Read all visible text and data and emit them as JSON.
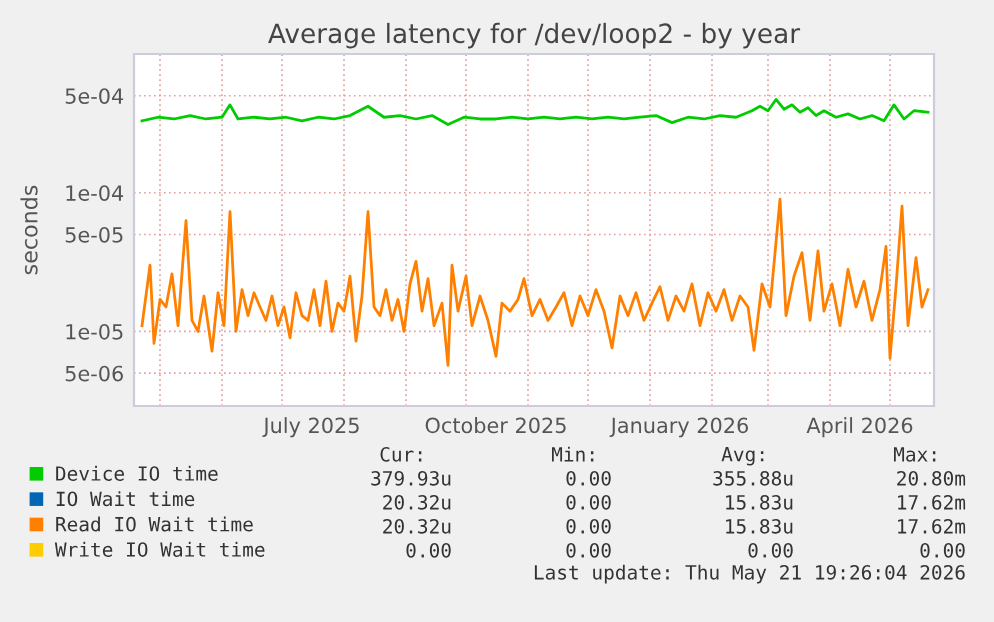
{
  "chart_data": {
    "type": "line",
    "title": "Average latency for /dev/loop2 - by year",
    "ylabel": "seconds",
    "log": "y",
    "grid": true,
    "legend": "bottom",
    "marker": "none",
    "line_style": "solid",
    "xlim": [
      "2025-04-18",
      "2026-05-23"
    ],
    "ylim": [
      2.9e-06,
      0.001
    ],
    "yticks": [
      {
        "value": 5e-06,
        "label": "5e-06"
      },
      {
        "value": 1e-05,
        "label": "1e-05"
      },
      {
        "value": 5e-05,
        "label": "5e-05"
      },
      {
        "value": 0.0001,
        "label": "1e-04"
      },
      {
        "value": 0.0005,
        "label": "5e-04"
      }
    ],
    "xticks": [
      {
        "value": "2025-05-01",
        "label": null
      },
      {
        "value": "2025-06-01",
        "label": null
      },
      {
        "value": "2025-07-01",
        "label": null
      },
      {
        "value": "2025-07-16",
        "label": "July 2025"
      },
      {
        "value": "2025-08-01",
        "label": null
      },
      {
        "value": "2025-09-01",
        "label": null
      },
      {
        "value": "2025-10-01",
        "label": null
      },
      {
        "value": "2025-10-16",
        "label": "October 2025"
      },
      {
        "value": "2025-11-01",
        "label": null
      },
      {
        "value": "2025-12-01",
        "label": null
      },
      {
        "value": "2026-01-01",
        "label": null
      },
      {
        "value": "2026-01-16",
        "label": "January 2026"
      },
      {
        "value": "2026-02-01",
        "label": null
      },
      {
        "value": "2026-03-01",
        "label": null
      },
      {
        "value": "2026-04-01",
        "label": null
      },
      {
        "value": "2026-04-16",
        "label": "April 2026"
      },
      {
        "value": "2026-05-01",
        "label": null
      }
    ],
    "series": [
      {
        "name": "Device IO time",
        "color": "#00cc00",
        "x": [
          "2025-04-22",
          "2025-04-30",
          "2025-05-08",
          "2025-05-16",
          "2025-05-24",
          "2025-06-01",
          "2025-06-05",
          "2025-06-09",
          "2025-06-17",
          "2025-06-25",
          "2025-07-03",
          "2025-07-11",
          "2025-07-19",
          "2025-07-27",
          "2025-08-04",
          "2025-08-13",
          "2025-08-21",
          "2025-08-29",
          "2025-09-06",
          "2025-09-14",
          "2025-09-22",
          "2025-09-30",
          "2025-10-08",
          "2025-10-16",
          "2025-10-24",
          "2025-11-01",
          "2025-11-09",
          "2025-11-17",
          "2025-11-25",
          "2025-12-03",
          "2025-12-11",
          "2025-12-19",
          "2025-12-27",
          "2026-01-04",
          "2026-01-12",
          "2026-01-20",
          "2026-01-28",
          "2026-02-05",
          "2026-02-13",
          "2026-02-21",
          "2026-02-25",
          "2026-03-01",
          "2026-03-05",
          "2026-03-09",
          "2026-03-13",
          "2026-03-17",
          "2026-03-21",
          "2026-03-25",
          "2026-03-29",
          "2026-04-04",
          "2026-04-10",
          "2026-04-16",
          "2026-04-22",
          "2026-04-28",
          "2026-05-03",
          "2026-05-08",
          "2026-05-13",
          "2026-05-20"
        ],
        "values": [
          0.00033,
          0.00035,
          0.00034,
          0.00036,
          0.00034,
          0.00035,
          0.00043,
          0.00034,
          0.00035,
          0.00034,
          0.00035,
          0.00033,
          0.00035,
          0.00034,
          0.00036,
          0.00042,
          0.00035,
          0.00036,
          0.00034,
          0.00036,
          0.00031,
          0.00035,
          0.00034,
          0.00034,
          0.00035,
          0.00034,
          0.00035,
          0.00034,
          0.00035,
          0.00034,
          0.00035,
          0.00034,
          0.00035,
          0.00036,
          0.00032,
          0.00035,
          0.00034,
          0.00036,
          0.00035,
          0.00039,
          0.00042,
          0.00039,
          0.00047,
          0.0004,
          0.00043,
          0.00038,
          0.00041,
          0.00036,
          0.00039,
          0.00035,
          0.00037,
          0.00034,
          0.00036,
          0.00033,
          0.00043,
          0.00034,
          0.00039,
          0.00038
        ]
      },
      {
        "name": "IO Wait time",
        "color": "#0066b3"
      },
      {
        "name": "Read IO Wait time",
        "color": "#ff8000",
        "x": [
          "2025-04-22",
          "2025-04-26",
          "2025-04-28",
          "2025-05-01",
          "2025-05-04",
          "2025-05-07",
          "2025-05-10",
          "2025-05-14",
          "2025-05-17",
          "2025-05-20",
          "2025-05-23",
          "2025-05-27",
          "2025-05-30",
          "2025-06-02",
          "2025-06-05",
          "2025-06-08",
          "2025-06-11",
          "2025-06-14",
          "2025-06-17",
          "2025-06-20",
          "2025-06-23",
          "2025-06-26",
          "2025-06-29",
          "2025-07-02",
          "2025-07-05",
          "2025-07-08",
          "2025-07-11",
          "2025-07-14",
          "2025-07-17",
          "2025-07-20",
          "2025-07-23",
          "2025-07-26",
          "2025-07-29",
          "2025-08-01",
          "2025-08-04",
          "2025-08-07",
          "2025-08-10",
          "2025-08-13",
          "2025-08-16",
          "2025-08-19",
          "2025-08-22",
          "2025-08-25",
          "2025-08-28",
          "2025-08-31",
          "2025-09-03",
          "2025-09-06",
          "2025-09-09",
          "2025-09-12",
          "2025-09-15",
          "2025-09-19",
          "2025-09-22",
          "2025-09-24",
          "2025-09-27",
          "2025-10-01",
          "2025-10-04",
          "2025-10-08",
          "2025-10-12",
          "2025-10-16",
          "2025-10-19",
          "2025-10-23",
          "2025-10-27",
          "2025-10-30",
          "2025-11-03",
          "2025-11-07",
          "2025-11-11",
          "2025-11-15",
          "2025-11-19",
          "2025-11-23",
          "2025-11-27",
          "2025-12-01",
          "2025-12-05",
          "2025-12-09",
          "2025-12-13",
          "2025-12-17",
          "2025-12-21",
          "2025-12-25",
          "2025-12-29",
          "2026-01-02",
          "2026-01-06",
          "2026-01-10",
          "2026-01-14",
          "2026-01-18",
          "2026-01-22",
          "2026-01-26",
          "2026-01-30",
          "2026-02-03",
          "2026-02-07",
          "2026-02-11",
          "2026-02-15",
          "2026-02-19",
          "2026-02-22",
          "2026-02-26",
          "2026-03-02",
          "2026-03-07",
          "2026-03-10",
          "2026-03-14",
          "2026-03-18",
          "2026-03-22",
          "2026-03-26",
          "2026-03-29",
          "2026-04-02",
          "2026-04-06",
          "2026-04-10",
          "2026-04-14",
          "2026-04-18",
          "2026-04-22",
          "2026-04-26",
          "2026-04-29",
          "2026-05-01",
          "2026-05-04",
          "2026-05-07",
          "2026-05-10",
          "2026-05-14",
          "2026-05-17",
          "2026-05-20"
        ],
        "values": [
          1.1e-05,
          3e-05,
          8.2e-06,
          1.7e-05,
          1.5e-05,
          2.6e-05,
          1.1e-05,
          6.3e-05,
          1.2e-05,
          1e-05,
          1.8e-05,
          7.2e-06,
          1.9e-05,
          1.1e-05,
          7.3e-05,
          1e-05,
          2e-05,
          1.3e-05,
          1.9e-05,
          1.5e-05,
          1.2e-05,
          1.8e-05,
          1.1e-05,
          1.5e-05,
          9e-06,
          1.9e-05,
          1.3e-05,
          1.2e-05,
          2e-05,
          1.1e-05,
          2.3e-05,
          1e-05,
          1.6e-05,
          1.4e-05,
          2.5e-05,
          8.5e-06,
          1.8e-05,
          7.3e-05,
          1.5e-05,
          1.3e-05,
          2e-05,
          1.2e-05,
          1.7e-05,
          1e-05,
          2.2e-05,
          3.2e-05,
          1.4e-05,
          2.4e-05,
          1.1e-05,
          1.6e-05,
          5.7e-06,
          3e-05,
          1.4e-05,
          2.5e-05,
          1.1e-05,
          1.8e-05,
          1.2e-05,
          6.6e-06,
          1.6e-05,
          1.4e-05,
          1.7e-05,
          2.4e-05,
          1.3e-05,
          1.7e-05,
          1.2e-05,
          1.5e-05,
          1.9e-05,
          1.1e-05,
          1.8e-05,
          1.3e-05,
          2e-05,
          1.4e-05,
          7.6e-06,
          1.8e-05,
          1.3e-05,
          1.9e-05,
          1.2e-05,
          1.6e-05,
          2.1e-05,
          1.2e-05,
          1.8e-05,
          1.4e-05,
          2.2e-05,
          1.1e-05,
          1.9e-05,
          1.4e-05,
          2e-05,
          1.2e-05,
          1.8e-05,
          1.5e-05,
          7.3e-06,
          2.2e-05,
          1.5e-05,
          9e-05,
          1.3e-05,
          2.5e-05,
          3.7e-05,
          1.2e-05,
          3.8e-05,
          1.4e-05,
          2.2e-05,
          1.1e-05,
          2.8e-05,
          1.5e-05,
          2.3e-05,
          1.2e-05,
          2e-05,
          4.1e-05,
          6.4e-06,
          2.1e-05,
          8e-05,
          1.1e-05,
          3.4e-05,
          1.5e-05,
          2e-05
        ]
      },
      {
        "name": "Write IO Wait time",
        "color": "#ffcc00"
      }
    ],
    "annotations": [
      "Cur:",
      "Min:",
      "Avg:",
      "Max:",
      "379.93u",
      "0.00",
      "355.88u",
      "20.80m",
      "20.32u",
      "0.00",
      "15.83u",
      "17.62m",
      "20.32u",
      "0.00",
      "15.83u",
      "17.62m",
      "0.00",
      "0.00",
      "0.00",
      "0.00",
      "Last update: Thu May 21 19:26:04 2026"
    ]
  }
}
